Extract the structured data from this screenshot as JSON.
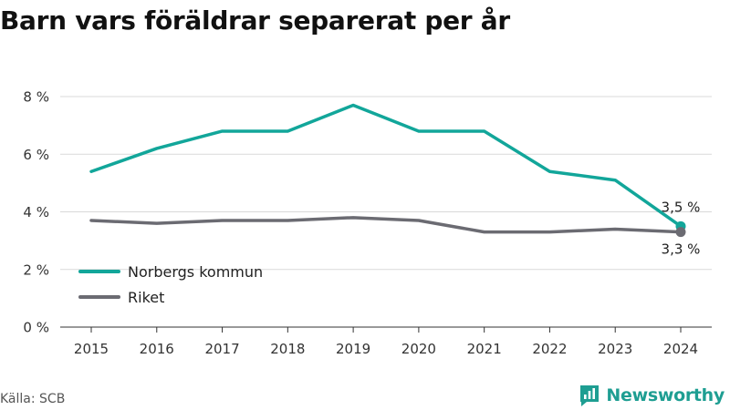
{
  "title": "Barn vars föräldrar separerat per år",
  "source": "Källa: SCB",
  "brand": "Newsworthy",
  "chart_data": {
    "type": "line",
    "title": "Barn vars föräldrar separerat per år",
    "x": [
      "2015",
      "2016",
      "2017",
      "2018",
      "2019",
      "2020",
      "2021",
      "2022",
      "2023",
      "2024"
    ],
    "y_ticks": [
      "0 %",
      "2 %",
      "4 %",
      "6 %",
      "8 %"
    ],
    "y_tick_values": [
      0,
      2,
      4,
      6,
      8
    ],
    "ylim": [
      0,
      8
    ],
    "grid": true,
    "legend_position": "bottom-left",
    "series": [
      {
        "name": "Norbergs kommun",
        "color": "#12a69a",
        "values": [
          5.4,
          6.2,
          6.8,
          6.8,
          7.7,
          6.8,
          6.8,
          5.4,
          5.1,
          3.5
        ],
        "end_label": "3,5 %"
      },
      {
        "name": "Riket",
        "color": "#6b6b72",
        "values": [
          3.7,
          3.6,
          3.7,
          3.7,
          3.8,
          3.7,
          3.3,
          3.3,
          3.4,
          3.3
        ],
        "end_label": "3,3 %"
      }
    ]
  }
}
